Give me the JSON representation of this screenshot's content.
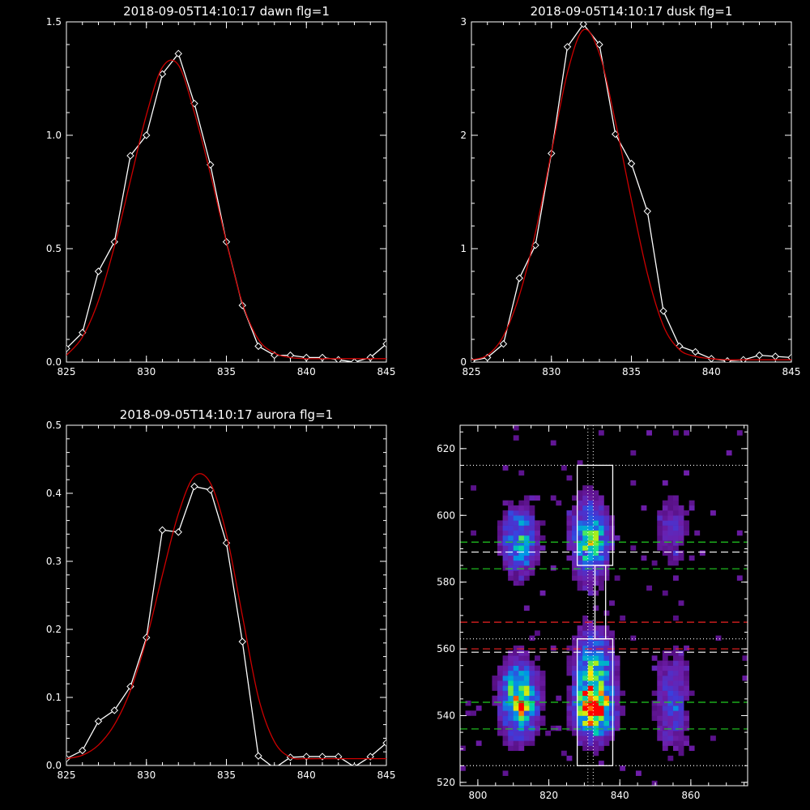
{
  "chart_data": [
    {
      "type": "line",
      "title": "2018-09-05T14:10:17 dawn flg=1",
      "xlim": [
        825,
        845
      ],
      "ylim": [
        0,
        1.5
      ],
      "xticks": [
        "825",
        "830",
        "835",
        "840",
        "845"
      ],
      "yticks": [
        "0.0",
        "0.5",
        "1.0",
        "1.5"
      ],
      "x": [
        825,
        826,
        827,
        828,
        829,
        830,
        831,
        832,
        833,
        834,
        835,
        836,
        837,
        838,
        839,
        840,
        841,
        842,
        843,
        844,
        845
      ],
      "series": [
        {
          "values": [
            0.06,
            0.13,
            0.4,
            0.53,
            0.91,
            1.0,
            1.27,
            1.36,
            1.14,
            0.87,
            0.53,
            0.25,
            0.07,
            0.03,
            0.03,
            0.02,
            0.02,
            0.01,
            0.0,
            0.02,
            0.08
          ],
          "color": "#ffffff",
          "markers": "diamond"
        },
        {
          "values": [
            0.03,
            0.11,
            0.27,
            0.51,
            0.8,
            1.09,
            1.3,
            1.31,
            1.1,
            0.83,
            0.53,
            0.26,
            0.1,
            0.04,
            0.02,
            0.015,
            0.015,
            0.015,
            0.015,
            0.015,
            0.015
          ],
          "color": "#cc0000"
        }
      ]
    },
    {
      "type": "line",
      "title": "2018-09-05T14:10:17 dusk flg=1",
      "xlim": [
        825,
        845
      ],
      "ylim": [
        0,
        3
      ],
      "xticks": [
        "825",
        "830",
        "835",
        "840",
        "845"
      ],
      "yticks": [
        "0",
        "1",
        "2",
        "3"
      ],
      "x": [
        825,
        826,
        827,
        828,
        829,
        830,
        831,
        832,
        833,
        834,
        835,
        836,
        837,
        838,
        839,
        840,
        841,
        842,
        843,
        844,
        845
      ],
      "series": [
        {
          "values": [
            0.01,
            0.04,
            0.16,
            0.74,
            1.03,
            1.84,
            2.78,
            2.98,
            2.8,
            2.01,
            1.75,
            1.33,
            0.45,
            0.14,
            0.09,
            0.03,
            0.01,
            0.02,
            0.06,
            0.05,
            0.04
          ],
          "color": "#ffffff",
          "markers": "diamond"
        },
        {
          "values": [
            0.02,
            0.06,
            0.23,
            0.59,
            1.14,
            1.85,
            2.55,
            2.93,
            2.72,
            2.12,
            1.43,
            0.78,
            0.32,
            0.11,
            0.05,
            0.03,
            0.02,
            0.02,
            0.02,
            0.02,
            0.02
          ],
          "color": "#cc0000"
        }
      ]
    },
    {
      "type": "line",
      "title": "2018-09-05T14:10:17 aurora flg=1",
      "xlim": [
        825,
        845
      ],
      "ylim": [
        0,
        0.5
      ],
      "xticks": [
        "825",
        "830",
        "835",
        "840",
        "845"
      ],
      "yticks": [
        "0.0",
        "0.1",
        "0.2",
        "0.3",
        "0.4",
        "0.5"
      ],
      "x": [
        825,
        826,
        827,
        828,
        829,
        830,
        831,
        832,
        833,
        834,
        835,
        836,
        837,
        838,
        839,
        840,
        841,
        842,
        843,
        844,
        845
      ],
      "series": [
        {
          "values": [
            0.01,
            0.022,
            0.065,
            0.081,
            0.116,
            0.188,
            0.346,
            0.343,
            0.41,
            0.405,
            0.327,
            0.182,
            0.014,
            -0.004,
            0.012,
            0.013,
            0.013,
            0.013,
            -0.002,
            0.013,
            0.033
          ],
          "color": "#ffffff",
          "markers": "diamond"
        },
        {
          "values": [
            0.01,
            0.015,
            0.03,
            0.06,
            0.11,
            0.185,
            0.28,
            0.37,
            0.425,
            0.415,
            0.34,
            0.22,
            0.1,
            0.035,
            0.012,
            0.01,
            0.01,
            0.01,
            0.01,
            0.01,
            0.01
          ],
          "color": "#cc0000"
        }
      ]
    },
    {
      "type": "heatmap",
      "xlim": [
        795,
        876
      ],
      "ylim": [
        519,
        627
      ],
      "xticks": [
        "800",
        "820",
        "840",
        "860"
      ],
      "yticks": [
        "520",
        "540",
        "560",
        "580",
        "600",
        "620"
      ],
      "blobs": [
        {
          "x": 811,
          "y": 544,
          "sx": 3.2,
          "sy": 7,
          "amp": 0.78
        },
        {
          "x": 811,
          "y": 592,
          "sx": 3.2,
          "sy": 6,
          "amp": 0.5
        },
        {
          "x": 832,
          "y": 541,
          "sx": 3.2,
          "sy": 5,
          "amp": 1.0
        },
        {
          "x": 832,
          "y": 552,
          "sx": 3.5,
          "sy": 8,
          "amp": 0.55
        },
        {
          "x": 831,
          "y": 592,
          "sx": 3.2,
          "sy": 7,
          "amp": 0.65
        },
        {
          "x": 854,
          "y": 543,
          "sx": 3.0,
          "sy": 10,
          "amp": 0.25
        },
        {
          "x": 854,
          "y": 595,
          "sx": 3.0,
          "sy": 7,
          "amp": 0.18
        }
      ],
      "boxes": [
        {
          "x0": 828,
          "x1": 838,
          "y0": 585,
          "y1": 615
        },
        {
          "x0": 828,
          "x1": 838,
          "y0": 525,
          "y1": 563
        },
        {
          "x0": 833,
          "x1": 836,
          "y0": 563,
          "y1": 585
        }
      ],
      "hlines": [
        {
          "y": 615,
          "color": "#ffffff",
          "style": "dotted"
        },
        {
          "y": 525,
          "color": "#ffffff",
          "style": "dotted"
        },
        {
          "y": 563,
          "color": "#ffffff",
          "style": "dotted"
        },
        {
          "y": 592,
          "color": "#22cc22",
          "style": "dashed"
        },
        {
          "y": 589,
          "color": "#ffffff",
          "style": "dashed"
        },
        {
          "y": 584,
          "color": "#22cc22",
          "style": "dashed"
        },
        {
          "y": 568,
          "color": "#ee2222",
          "style": "dashed"
        },
        {
          "y": 560,
          "color": "#ee2222",
          "style": "dashed"
        },
        {
          "y": 559,
          "color": "#ffffff",
          "style": "dashed"
        },
        {
          "y": 544,
          "color": "#22cc22",
          "style": "dashed"
        },
        {
          "y": 536,
          "color": "#22cc22",
          "style": "dashed"
        }
      ],
      "vlines": [
        {
          "x": 831,
          "color": "#ffffff",
          "style": "dotted"
        },
        {
          "x": 832.5,
          "color": "#ffffff",
          "style": "dotted"
        }
      ]
    }
  ]
}
